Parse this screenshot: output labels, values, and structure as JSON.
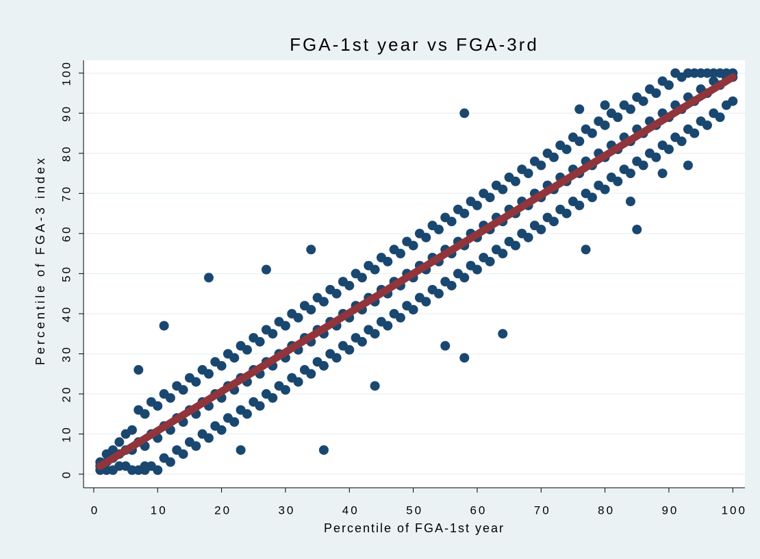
{
  "chart_data": {
    "type": "scatter",
    "title": "FGA-1st year vs FGA-3rd",
    "x_label": "Percentile of FGA-1st year",
    "y_label": "Percentile of FGA-3 index",
    "xlim": [
      -1.6,
      101.9
    ],
    "ylim": [
      -3.4,
      103.2
    ],
    "xticks": [
      0,
      10,
      20,
      30,
      40,
      50,
      60,
      70,
      80,
      90,
      100
    ],
    "yticks": [
      0,
      10,
      20,
      30,
      40,
      50,
      60,
      70,
      80,
      90,
      100
    ],
    "grid": true,
    "series": [
      {
        "type": "scatter",
        "color": "#1a476f",
        "x": [
          1,
          1,
          1,
          2,
          2,
          2,
          3,
          3,
          3,
          4,
          4,
          4,
          5,
          5,
          5,
          6,
          6,
          6,
          7,
          7,
          7,
          8,
          8,
          8,
          9,
          9,
          9,
          10,
          10,
          10,
          11,
          11,
          11,
          12,
          12,
          12,
          13,
          13,
          13,
          14,
          14,
          14,
          15,
          15,
          15,
          16,
          16,
          16,
          17,
          17,
          17,
          18,
          18,
          18,
          19,
          19,
          19,
          20,
          20,
          20,
          21,
          21,
          21,
          22,
          22,
          22,
          23,
          23,
          23,
          24,
          24,
          24,
          25,
          25,
          25,
          26,
          26,
          26,
          27,
          27,
          27,
          28,
          28,
          28,
          29,
          29,
          29,
          30,
          30,
          30,
          31,
          31,
          31,
          32,
          32,
          32,
          33,
          33,
          33,
          34,
          34,
          34,
          35,
          35,
          35,
          36,
          36,
          36,
          37,
          37,
          37,
          38,
          38,
          38,
          39,
          39,
          39,
          40,
          40,
          40,
          41,
          41,
          41,
          42,
          42,
          42,
          43,
          43,
          43,
          44,
          44,
          44,
          45,
          45,
          45,
          46,
          46,
          46,
          47,
          47,
          47,
          48,
          48,
          48,
          49,
          49,
          49,
          50,
          50,
          50,
          51,
          51,
          51,
          52,
          52,
          52,
          53,
          53,
          53,
          54,
          54,
          54,
          55,
          55,
          55,
          56,
          56,
          56,
          57,
          57,
          57,
          58,
          58,
          58,
          59,
          59,
          59,
          60,
          60,
          60,
          61,
          61,
          61,
          62,
          62,
          62,
          63,
          63,
          63,
          64,
          64,
          64,
          65,
          65,
          65,
          66,
          66,
          66,
          67,
          67,
          67,
          68,
          68,
          68,
          69,
          69,
          69,
          70,
          70,
          70,
          71,
          71,
          71,
          72,
          72,
          72,
          73,
          73,
          73,
          74,
          74,
          74,
          75,
          75,
          75,
          76,
          76,
          76,
          77,
          77,
          77,
          78,
          78,
          78,
          79,
          79,
          79,
          80,
          80,
          80,
          81,
          81,
          81,
          82,
          82,
          82,
          83,
          83,
          83,
          84,
          84,
          84,
          85,
          85,
          85,
          86,
          86,
          86,
          87,
          87,
          87,
          88,
          88,
          88,
          89,
          89,
          89,
          90,
          90,
          90,
          91,
          91,
          91,
          92,
          92,
          92,
          93,
          93,
          93,
          94,
          94,
          94,
          95,
          95,
          95,
          96,
          96,
          96,
          97,
          97,
          97,
          98,
          98,
          98,
          99,
          99,
          99,
          100,
          100,
          100,
          58,
          18,
          11,
          36,
          85,
          64,
          58,
          23,
          7,
          77,
          84,
          8,
          34,
          55,
          93,
          89,
          76,
          80,
          44,
          27
        ],
        "values": [
          1,
          2,
          3,
          1,
          3,
          5,
          1,
          4,
          6,
          2,
          5,
          8,
          2,
          6,
          10,
          1,
          6,
          11,
          1,
          8,
          16,
          2,
          7,
          15,
          2,
          10,
          18,
          1,
          9,
          17,
          4,
          12,
          20,
          3,
          11,
          19,
          6,
          14,
          22,
          5,
          13,
          21,
          8,
          16,
          24,
          7,
          15,
          23,
          10,
          18,
          26,
          9,
          17,
          25,
          12,
          20,
          28,
          11,
          19,
          27,
          14,
          22,
          30,
          13,
          21,
          29,
          16,
          24,
          32,
          15,
          23,
          31,
          18,
          26,
          34,
          17,
          25,
          33,
          20,
          28,
          36,
          19,
          27,
          35,
          22,
          30,
          38,
          21,
          29,
          37,
          24,
          32,
          40,
          23,
          31,
          39,
          26,
          34,
          42,
          25,
          33,
          41,
          28,
          36,
          44,
          27,
          35,
          43,
          30,
          38,
          46,
          29,
          37,
          45,
          32,
          40,
          48,
          31,
          39,
          47,
          34,
          42,
          50,
          33,
          41,
          49,
          36,
          44,
          52,
          35,
          43,
          51,
          38,
          46,
          54,
          37,
          45,
          53,
          40,
          48,
          56,
          39,
          47,
          55,
          42,
          50,
          58,
          41,
          49,
          57,
          44,
          52,
          60,
          43,
          51,
          59,
          46,
          54,
          62,
          45,
          53,
          61,
          48,
          56,
          64,
          47,
          55,
          63,
          50,
          58,
          66,
          49,
          57,
          65,
          52,
          60,
          68,
          51,
          59,
          67,
          54,
          62,
          70,
          53,
          61,
          69,
          56,
          64,
          72,
          55,
          63,
          71,
          58,
          66,
          74,
          57,
          65,
          73,
          60,
          68,
          76,
          59,
          67,
          75,
          62,
          70,
          78,
          61,
          69,
          77,
          64,
          72,
          80,
          63,
          71,
          79,
          66,
          74,
          82,
          65,
          73,
          81,
          68,
          76,
          84,
          67,
          75,
          83,
          70,
          78,
          86,
          69,
          77,
          85,
          72,
          80,
          88,
          71,
          79,
          87,
          74,
          82,
          90,
          73,
          81,
          89,
          76,
          84,
          92,
          75,
          83,
          91,
          78,
          86,
          94,
          77,
          85,
          93,
          80,
          88,
          96,
          79,
          87,
          95,
          82,
          90,
          98,
          81,
          89,
          97,
          84,
          92,
          100,
          83,
          91,
          99,
          86,
          94,
          100,
          85,
          93,
          100,
          88,
          96,
          100,
          87,
          95,
          100,
          90,
          98,
          100,
          89,
          97,
          100,
          92,
          99,
          100,
          93,
          99,
          100,
          90,
          49,
          37,
          6,
          61,
          35,
          29,
          6,
          26,
          56,
          68,
          1,
          56,
          32,
          77,
          75,
          91,
          92,
          22,
          51
        ]
      },
      {
        "type": "line",
        "color": "#90353b",
        "x": [
          1,
          100
        ],
        "values": [
          2,
          99
        ]
      }
    ]
  }
}
